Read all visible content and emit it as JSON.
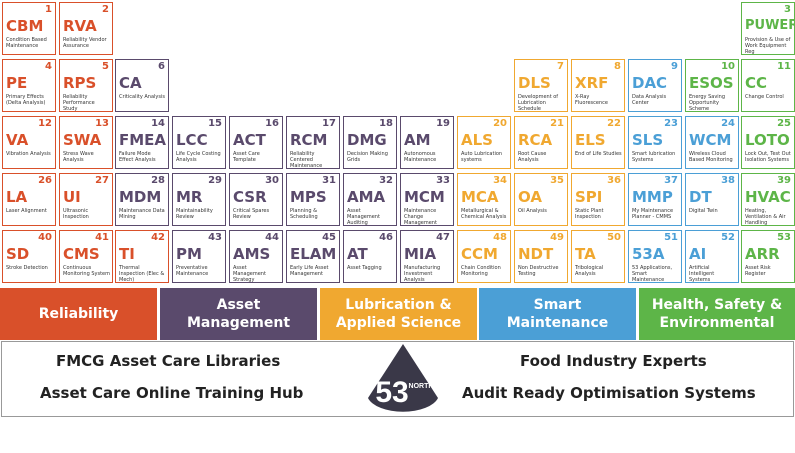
{
  "colors": {
    "reliability": "#d9502a",
    "asset_management": "#5a4a6c",
    "lubrication": "#f0a830",
    "smart_maintenance": "#4b9fd6",
    "hse": "#5db548"
  },
  "elements": [
    {
      "num": "1",
      "sym": "CBM",
      "desc": "Condition Based Maintenance",
      "cat": "rel",
      "col": 0,
      "row": 0
    },
    {
      "num": "2",
      "sym": "RVA",
      "desc": "Reliability Vendor Assurance",
      "cat": "rel",
      "col": 1,
      "row": 0
    },
    {
      "num": "3",
      "sym": "PUWER",
      "desc": "Provision & Use of Work Equipment Reg",
      "cat": "hse",
      "col": 13,
      "row": 0
    },
    {
      "num": "4",
      "sym": "PE",
      "desc": "Primary Effects (Delta Analysis)",
      "cat": "rel",
      "col": 0,
      "row": 1
    },
    {
      "num": "5",
      "sym": "RPS",
      "desc": "Reliability Performance Study",
      "cat": "rel",
      "col": 1,
      "row": 1
    },
    {
      "num": "6",
      "sym": "CA",
      "desc": "Criticality Analysis",
      "cat": "am",
      "col": 2,
      "row": 1
    },
    {
      "num": "7",
      "sym": "DLS",
      "desc": "Development of Lubrication Schedule",
      "cat": "lub",
      "col": 9,
      "row": 1
    },
    {
      "num": "8",
      "sym": "XRF",
      "desc": "X-Ray Fluorescence",
      "cat": "lub",
      "col": 10,
      "row": 1
    },
    {
      "num": "9",
      "sym": "DAC",
      "desc": "Data Analysis Center",
      "cat": "smart",
      "col": 11,
      "row": 1
    },
    {
      "num": "10",
      "sym": "ESOS",
      "desc": "Energy Saving Opportunity Scheme",
      "cat": "hse",
      "col": 12,
      "row": 1
    },
    {
      "num": "11",
      "sym": "CC",
      "desc": "Change Control",
      "cat": "hse",
      "col": 13,
      "row": 1
    },
    {
      "num": "12",
      "sym": "VA",
      "desc": "Vibration Analysis",
      "cat": "rel",
      "col": 0,
      "row": 2
    },
    {
      "num": "13",
      "sym": "SWA",
      "desc": "Stress Wave Analysis",
      "cat": "rel",
      "col": 1,
      "row": 2
    },
    {
      "num": "14",
      "sym": "FMEA",
      "desc": "Failure Mode Effect Analysis",
      "cat": "am",
      "col": 2,
      "row": 2
    },
    {
      "num": "15",
      "sym": "LCC",
      "desc": "Life Cycle Costing Analysis",
      "cat": "am",
      "col": 3,
      "row": 2
    },
    {
      "num": "16",
      "sym": "ACT",
      "desc": "Asset Care Template",
      "cat": "am",
      "col": 4,
      "row": 2
    },
    {
      "num": "17",
      "sym": "RCM",
      "desc": "Reliability Centered Maintenance",
      "cat": "am",
      "col": 5,
      "row": 2
    },
    {
      "num": "18",
      "sym": "DMG",
      "desc": "Decision Making Grids",
      "cat": "am",
      "col": 6,
      "row": 2
    },
    {
      "num": "19",
      "sym": "AM",
      "desc": "Autonomous Maintenance",
      "cat": "am",
      "col": 7,
      "row": 2
    },
    {
      "num": "20",
      "sym": "ALS",
      "desc": "Auto Lubrication systems",
      "cat": "lub",
      "col": 8,
      "row": 2
    },
    {
      "num": "21",
      "sym": "RCA",
      "desc": "Root Cause Analysis",
      "cat": "lub",
      "col": 9,
      "row": 2
    },
    {
      "num": "22",
      "sym": "ELS",
      "desc": "End of Life Studies",
      "cat": "lub",
      "col": 10,
      "row": 2
    },
    {
      "num": "23",
      "sym": "SLS",
      "desc": "Smart lubrication Systems",
      "cat": "smart",
      "col": 11,
      "row": 2
    },
    {
      "num": "24",
      "sym": "WCM",
      "desc": "Wireless Cloud Based Monitoring",
      "cat": "smart",
      "col": 12,
      "row": 2
    },
    {
      "num": "25",
      "sym": "LOTO",
      "desc": "Lock Out, Test Out Isolation Systems",
      "cat": "hse",
      "col": 13,
      "row": 2
    },
    {
      "num": "26",
      "sym": "LA",
      "desc": "Laser Alignment",
      "cat": "rel",
      "col": 0,
      "row": 3
    },
    {
      "num": "27",
      "sym": "UI",
      "desc": "Ultrasonic Inspection",
      "cat": "rel",
      "col": 1,
      "row": 3
    },
    {
      "num": "28",
      "sym": "MDM",
      "desc": "Maintenance Data Mining",
      "cat": "am",
      "col": 2,
      "row": 3
    },
    {
      "num": "29",
      "sym": "MR",
      "desc": "Maintainability Review",
      "cat": "am",
      "col": 3,
      "row": 3
    },
    {
      "num": "30",
      "sym": "CSR",
      "desc": "Critical Spares Review",
      "cat": "am",
      "col": 4,
      "row": 3
    },
    {
      "num": "31",
      "sym": "MPS",
      "desc": "Planning & Scheduling",
      "cat": "am",
      "col": 5,
      "row": 3
    },
    {
      "num": "32",
      "sym": "AMA",
      "desc": "Asset Management Auditing",
      "cat": "am",
      "col": 6,
      "row": 3
    },
    {
      "num": "33",
      "sym": "MCM",
      "desc": "Maintenance Change Management",
      "cat": "am",
      "col": 7,
      "row": 3
    },
    {
      "num": "34",
      "sym": "MCA",
      "desc": "Metallurgical & Chemical Analysis",
      "cat": "lub",
      "col": 8,
      "row": 3
    },
    {
      "num": "35",
      "sym": "OA",
      "desc": "Oil Analysis",
      "cat": "lub",
      "col": 9,
      "row": 3
    },
    {
      "num": "36",
      "sym": "SPI",
      "desc": "Static Plant Inspection",
      "cat": "lub",
      "col": 10,
      "row": 3
    },
    {
      "num": "37",
      "sym": "MMP",
      "desc": "My Maintenance Planner - CMMS",
      "cat": "smart",
      "col": 11,
      "row": 3
    },
    {
      "num": "38",
      "sym": "DT",
      "desc": "Digital Twin",
      "cat": "smart",
      "col": 12,
      "row": 3
    },
    {
      "num": "39",
      "sym": "HVAC",
      "desc": "Heating, Ventilation & Air Handling",
      "cat": "hse",
      "col": 13,
      "row": 3
    },
    {
      "num": "40",
      "sym": "SD",
      "desc": "Stroke Detection",
      "cat": "rel",
      "col": 0,
      "row": 4
    },
    {
      "num": "41",
      "sym": "CMS",
      "desc": "Continuous Monitoring System",
      "cat": "rel",
      "col": 1,
      "row": 4
    },
    {
      "num": "42",
      "sym": "TI",
      "desc": "Thermal Inspection (Elec & Mech)",
      "cat": "rel",
      "col": 2,
      "row": 4
    },
    {
      "num": "43",
      "sym": "PM",
      "desc": "Preventative Maintenance",
      "cat": "am",
      "col": 3,
      "row": 4
    },
    {
      "num": "44",
      "sym": "AMS",
      "desc": "Asset Management Strategy",
      "cat": "am",
      "col": 4,
      "row": 4
    },
    {
      "num": "45",
      "sym": "ELAM",
      "desc": "Early Life Asset Management",
      "cat": "am",
      "col": 5,
      "row": 4
    },
    {
      "num": "46",
      "sym": "AT",
      "desc": "Asset Tagging",
      "cat": "am",
      "col": 6,
      "row": 4
    },
    {
      "num": "47",
      "sym": "MIA",
      "desc": "Manufacturing Investment Analysis",
      "cat": "am",
      "col": 7,
      "row": 4
    },
    {
      "num": "48",
      "sym": "CCM",
      "desc": "Chain Condition Monitoring",
      "cat": "lub",
      "col": 8,
      "row": 4
    },
    {
      "num": "49",
      "sym": "NDT",
      "desc": "Non Destructive Testing",
      "cat": "lub",
      "col": 9,
      "row": 4
    },
    {
      "num": "50",
      "sym": "TA",
      "desc": "Tribological Analysis",
      "cat": "lub",
      "col": 10,
      "row": 4
    },
    {
      "num": "51",
      "sym": "53A",
      "desc": "53 Applications, Smart Maintenance Center",
      "cat": "smart",
      "col": 11,
      "row": 4
    },
    {
      "num": "52",
      "sym": "AI",
      "desc": "Artificial Intelligent Systems",
      "cat": "smart",
      "col": 12,
      "row": 4
    },
    {
      "num": "53",
      "sym": "ARR",
      "desc": "Asset Risk Register",
      "cat": "hse",
      "col": 13,
      "row": 4
    }
  ],
  "categories": [
    {
      "label": "Reliability",
      "key": "reliability"
    },
    {
      "label": "Asset Management",
      "key": "asset_management"
    },
    {
      "label": "Lubrication & Applied Science",
      "key": "lubrication"
    },
    {
      "label": "Smart Maintenance",
      "key": "smart_maintenance"
    },
    {
      "label": "Health, Safety & Environmental",
      "key": "hse"
    }
  ],
  "banner": {
    "left_top": "FMCG Asset Care Libraries",
    "left_bottom": "Asset Care Online Training Hub",
    "right_top": "Food Industry Experts",
    "right_bottom": "Audit Ready Optimisation Systems",
    "logo_number": "53",
    "logo_word": "NORTH"
  }
}
